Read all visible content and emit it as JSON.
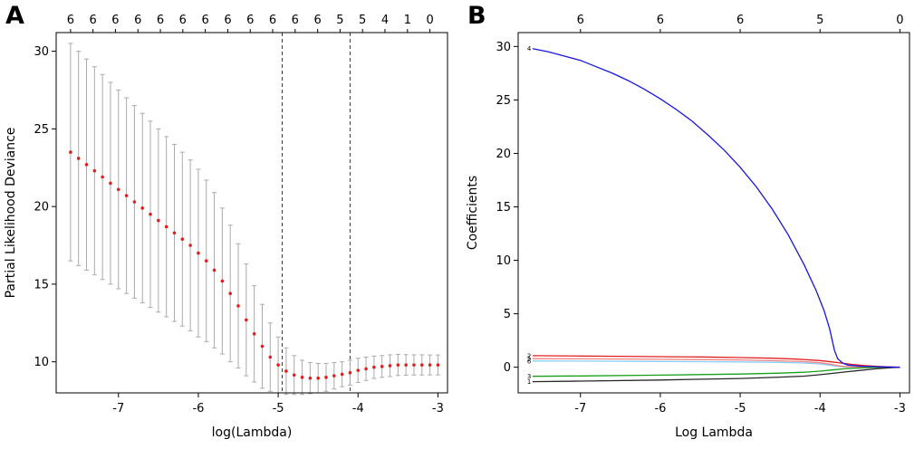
{
  "panels": [
    {
      "label": "A"
    },
    {
      "label": "B"
    }
  ],
  "colors": {
    "point": "#dd2020",
    "errorbar": "#aaaaaa",
    "vline": "#3a3a3a",
    "axis": "#000000"
  },
  "chart_data": [
    {
      "id": "panel-a-chart",
      "type": "scatter",
      "title": "",
      "xlabel": "log(Lambda)",
      "ylabel": "Partial Likelihood Deviance",
      "xlim": [
        -7.78,
        -2.88
      ],
      "ylim": [
        8.0,
        31.2
      ],
      "x_ticks": [
        -7,
        -6,
        -5,
        -4,
        -3
      ],
      "y_ticks": [
        10,
        15,
        20,
        25,
        30
      ],
      "grid": false,
      "top_axis": {
        "labels": [
          "6",
          "6",
          "6",
          "6",
          "6",
          "6",
          "6",
          "6",
          "6",
          "6",
          "6",
          "6",
          "5",
          "5",
          "4",
          "1",
          "0"
        ],
        "x": [
          -7.6,
          -7.319,
          -7.038,
          -6.756,
          -6.475,
          -6.194,
          -5.913,
          -5.631,
          -5.35,
          -5.069,
          -4.788,
          -4.506,
          -4.225,
          -3.944,
          -3.663,
          -3.381,
          -3.1
        ]
      },
      "vlines": [
        -4.95,
        -4.1
      ],
      "point_color": "#dd2020",
      "errorbar_color": "#aaaaaa",
      "vline_color": "#3a3a3a",
      "points": {
        "x": [
          -7.6,
          -7.5,
          -7.4,
          -7.3,
          -7.2,
          -7.1,
          -7.0,
          -6.9,
          -6.8,
          -6.7,
          -6.6,
          -6.5,
          -6.4,
          -6.3,
          -6.2,
          -6.1,
          -6.0,
          -5.9,
          -5.8,
          -5.7,
          -5.6,
          -5.5,
          -5.4,
          -5.3,
          -5.2,
          -5.1,
          -5.0,
          -4.9,
          -4.8,
          -4.7,
          -4.6,
          -4.5,
          -4.4,
          -4.3,
          -4.2,
          -4.1,
          -4.0,
          -3.9,
          -3.8,
          -3.7,
          -3.6,
          -3.5,
          -3.4,
          -3.3,
          -3.2,
          -3.1,
          -3.0
        ],
        "y": [
          23.5,
          23.1,
          22.7,
          22.3,
          21.9,
          21.5,
          21.1,
          20.7,
          20.3,
          19.9,
          19.5,
          19.1,
          18.7,
          18.3,
          17.9,
          17.5,
          17.0,
          16.5,
          15.9,
          15.2,
          14.4,
          13.6,
          12.7,
          11.8,
          11.0,
          10.3,
          9.8,
          9.4,
          9.15,
          9.0,
          8.95,
          8.95,
          9.0,
          9.1,
          9.2,
          9.3,
          9.45,
          9.55,
          9.65,
          9.7,
          9.75,
          9.8,
          9.8,
          9.8,
          9.8,
          9.8,
          9.8
        ],
        "err": [
          7.0,
          6.9,
          6.8,
          6.7,
          6.6,
          6.5,
          6.4,
          6.3,
          6.2,
          6.1,
          6.0,
          5.9,
          5.8,
          5.7,
          5.6,
          5.5,
          5.4,
          5.2,
          5.0,
          4.7,
          4.4,
          4.0,
          3.6,
          3.1,
          2.7,
          2.2,
          1.8,
          1.5,
          1.25,
          1.1,
          1.0,
          0.95,
          0.9,
          0.85,
          0.8,
          0.8,
          0.78,
          0.75,
          0.72,
          0.7,
          0.7,
          0.68,
          0.66,
          0.65,
          0.65,
          0.64,
          0.64
        ]
      }
    },
    {
      "id": "panel-b-chart",
      "type": "line",
      "title": "",
      "xlabel": "Log Lambda",
      "ylabel": "Coefficients",
      "xlim": [
        -7.78,
        -2.88
      ],
      "ylim": [
        -2.4,
        31.3
      ],
      "x_ticks": [
        -7,
        -6,
        -5,
        -4,
        -3
      ],
      "y_ticks": [
        0,
        5,
        10,
        15,
        20,
        25,
        30
      ],
      "grid": false,
      "top_axis": {
        "labels": [
          "6",
          "6",
          "6",
          "5",
          "0"
        ],
        "x": [
          -7,
          -6,
          -5,
          -4,
          -3
        ]
      },
      "series": [
        {
          "name": "6",
          "color": "#87cefa",
          "x": [
            -7.6,
            -7.0,
            -6.0,
            -5.0,
            -4.5,
            -4.2,
            -4.0,
            -3.88,
            -3.8,
            -3.7,
            -3.5,
            -3.0
          ],
          "y": [
            0.58,
            0.57,
            0.54,
            0.5,
            0.45,
            0.39,
            0.3,
            0.2,
            0.1,
            0.03,
            0.0,
            0.0
          ]
        },
        {
          "name": "5",
          "color": "#f08080",
          "x": [
            -7.6,
            -7.0,
            -6.0,
            -5.0,
            -4.5,
            -4.2,
            -4.0,
            -3.88,
            -3.8,
            -3.72,
            -3.6,
            -3.4,
            -3.0
          ],
          "y": [
            0.8,
            0.78,
            0.74,
            0.68,
            0.6,
            0.52,
            0.42,
            0.3,
            0.18,
            0.08,
            0.02,
            0.0,
            0.0
          ]
        },
        {
          "name": "2",
          "color": "#e02020",
          "x": [
            -7.6,
            -7.0,
            -6.5,
            -6.0,
            -5.5,
            -5.0,
            -4.6,
            -4.3,
            -4.0,
            -3.85,
            -3.75,
            -3.6,
            -3.45,
            -3.3,
            -3.15,
            -3.0
          ],
          "y": [
            1.08,
            1.05,
            1.02,
            0.99,
            0.96,
            0.9,
            0.84,
            0.76,
            0.62,
            0.5,
            0.4,
            0.27,
            0.16,
            0.08,
            0.03,
            0.0
          ]
        },
        {
          "name": "3",
          "color": "#18a018",
          "x": [
            -7.6,
            -7.0,
            -6.0,
            -5.0,
            -4.5,
            -4.2,
            -4.0,
            -3.85,
            -3.7,
            -3.5,
            -3.3,
            -3.0
          ],
          "y": [
            -0.85,
            -0.82,
            -0.74,
            -0.64,
            -0.55,
            -0.47,
            -0.37,
            -0.26,
            -0.15,
            -0.07,
            -0.02,
            0.0
          ]
        },
        {
          "name": "1",
          "color": "#282828",
          "x": [
            -7.6,
            -7.0,
            -6.0,
            -5.0,
            -4.5,
            -4.2,
            -4.0,
            -3.85,
            -3.7,
            -3.5,
            -3.3,
            -3.1,
            -3.0
          ],
          "y": [
            -1.35,
            -1.3,
            -1.2,
            -1.05,
            -0.93,
            -0.83,
            -0.7,
            -0.58,
            -0.45,
            -0.3,
            -0.15,
            -0.04,
            0.0
          ]
        },
        {
          "name": "4",
          "color": "#1616e0",
          "x": [
            -7.6,
            -7.4,
            -7.2,
            -7.0,
            -6.8,
            -6.6,
            -6.4,
            -6.2,
            -6.0,
            -5.8,
            -5.6,
            -5.4,
            -5.2,
            -5.0,
            -4.8,
            -4.6,
            -4.4,
            -4.2,
            -4.05,
            -3.95,
            -3.88,
            -3.82,
            -3.78,
            -3.72,
            -3.65,
            -3.5,
            -3.3,
            -3.0
          ],
          "y": [
            29.8,
            29.5,
            29.1,
            28.7,
            28.1,
            27.5,
            26.8,
            26.0,
            25.1,
            24.1,
            23.0,
            21.7,
            20.3,
            18.7,
            16.9,
            14.8,
            12.4,
            9.6,
            7.2,
            5.3,
            3.6,
            1.6,
            0.8,
            0.4,
            0.2,
            0.1,
            0.05,
            0.0
          ]
        }
      ]
    }
  ]
}
